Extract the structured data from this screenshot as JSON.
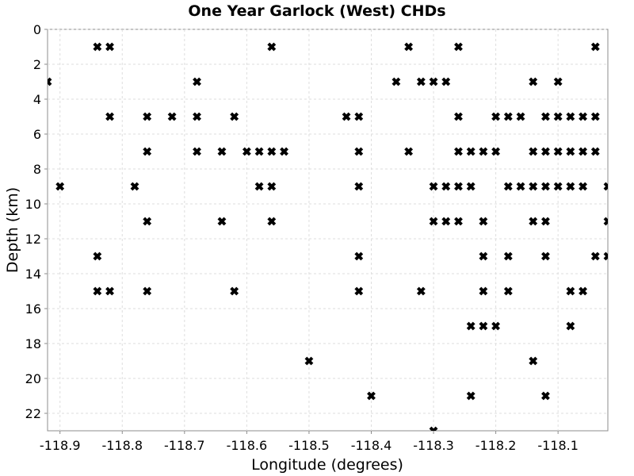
{
  "chart_data": {
    "type": "scatter",
    "title": "One Year Garlock (West) CHDs",
    "xlabel": "Longitude (degrees)",
    "ylabel": "Depth (km)",
    "xlim": [
      -118.92,
      -118.02
    ],
    "ylim": [
      0,
      23
    ],
    "y_inverted": true,
    "grid": true,
    "marker": "x",
    "marker_color": "#000000",
    "x_ticks": [
      -118.9,
      -118.8,
      -118.7,
      -118.6,
      -118.5,
      -118.4,
      -118.3,
      -118.2,
      -118.1
    ],
    "x_tick_labels": [
      "-118.9",
      "-118.8",
      "-118.7",
      "-118.6",
      "-118.5",
      "-118.4",
      "-118.3",
      "-118.2",
      "-118.1"
    ],
    "y_ticks": [
      0,
      2,
      4,
      6,
      8,
      10,
      12,
      14,
      16,
      18,
      20,
      22
    ],
    "y_tick_labels": [
      "0",
      "2",
      "4",
      "6",
      "8",
      "10",
      "12",
      "14",
      "16",
      "18",
      "20",
      "22"
    ],
    "points": [
      [
        -118.84,
        1
      ],
      [
        -118.82,
        1
      ],
      [
        -118.56,
        1
      ],
      [
        -118.34,
        1
      ],
      [
        -118.26,
        1
      ],
      [
        -118.04,
        1
      ],
      [
        -118.92,
        3
      ],
      [
        -118.68,
        3
      ],
      [
        -118.36,
        3
      ],
      [
        -118.32,
        3
      ],
      [
        -118.3,
        3
      ],
      [
        -118.28,
        3
      ],
      [
        -118.14,
        3
      ],
      [
        -118.1,
        3
      ],
      [
        -118.82,
        5
      ],
      [
        -118.76,
        5
      ],
      [
        -118.72,
        5
      ],
      [
        -118.68,
        5
      ],
      [
        -118.62,
        5
      ],
      [
        -118.44,
        5
      ],
      [
        -118.42,
        5
      ],
      [
        -118.26,
        5
      ],
      [
        -118.2,
        5
      ],
      [
        -118.18,
        5
      ],
      [
        -118.16,
        5
      ],
      [
        -118.12,
        5
      ],
      [
        -118.1,
        5
      ],
      [
        -118.08,
        5
      ],
      [
        -118.06,
        5
      ],
      [
        -118.04,
        5
      ],
      [
        -118.76,
        7
      ],
      [
        -118.68,
        7
      ],
      [
        -118.64,
        7
      ],
      [
        -118.6,
        7
      ],
      [
        -118.58,
        7
      ],
      [
        -118.56,
        7
      ],
      [
        -118.54,
        7
      ],
      [
        -118.42,
        7
      ],
      [
        -118.34,
        7
      ],
      [
        -118.26,
        7
      ],
      [
        -118.24,
        7
      ],
      [
        -118.22,
        7
      ],
      [
        -118.2,
        7
      ],
      [
        -118.14,
        7
      ],
      [
        -118.12,
        7
      ],
      [
        -118.1,
        7
      ],
      [
        -118.08,
        7
      ],
      [
        -118.06,
        7
      ],
      [
        -118.04,
        7
      ],
      [
        -118.9,
        9
      ],
      [
        -118.78,
        9
      ],
      [
        -118.58,
        9
      ],
      [
        -118.56,
        9
      ],
      [
        -118.42,
        9
      ],
      [
        -118.3,
        9
      ],
      [
        -118.28,
        9
      ],
      [
        -118.26,
        9
      ],
      [
        -118.24,
        9
      ],
      [
        -118.18,
        9
      ],
      [
        -118.16,
        9
      ],
      [
        -118.14,
        9
      ],
      [
        -118.12,
        9
      ],
      [
        -118.1,
        9
      ],
      [
        -118.08,
        9
      ],
      [
        -118.06,
        9
      ],
      [
        -118.02,
        9
      ],
      [
        -118.76,
        11
      ],
      [
        -118.64,
        11
      ],
      [
        -118.56,
        11
      ],
      [
        -118.3,
        11
      ],
      [
        -118.28,
        11
      ],
      [
        -118.26,
        11
      ],
      [
        -118.22,
        11
      ],
      [
        -118.14,
        11
      ],
      [
        -118.12,
        11
      ],
      [
        -118.02,
        11
      ],
      [
        -118.84,
        13
      ],
      [
        -118.42,
        13
      ],
      [
        -118.22,
        13
      ],
      [
        -118.18,
        13
      ],
      [
        -118.12,
        13
      ],
      [
        -118.04,
        13
      ],
      [
        -118.02,
        13
      ],
      [
        -118.84,
        15
      ],
      [
        -118.82,
        15
      ],
      [
        -118.76,
        15
      ],
      [
        -118.62,
        15
      ],
      [
        -118.42,
        15
      ],
      [
        -118.32,
        15
      ],
      [
        -118.22,
        15
      ],
      [
        -118.18,
        15
      ],
      [
        -118.08,
        15
      ],
      [
        -118.06,
        15
      ],
      [
        -118.24,
        17
      ],
      [
        -118.22,
        17
      ],
      [
        -118.2,
        17
      ],
      [
        -118.08,
        17
      ],
      [
        -118.5,
        19
      ],
      [
        -118.14,
        19
      ],
      [
        -118.4,
        21
      ],
      [
        -118.24,
        21
      ],
      [
        -118.12,
        21
      ],
      [
        -118.3,
        23
      ]
    ]
  }
}
